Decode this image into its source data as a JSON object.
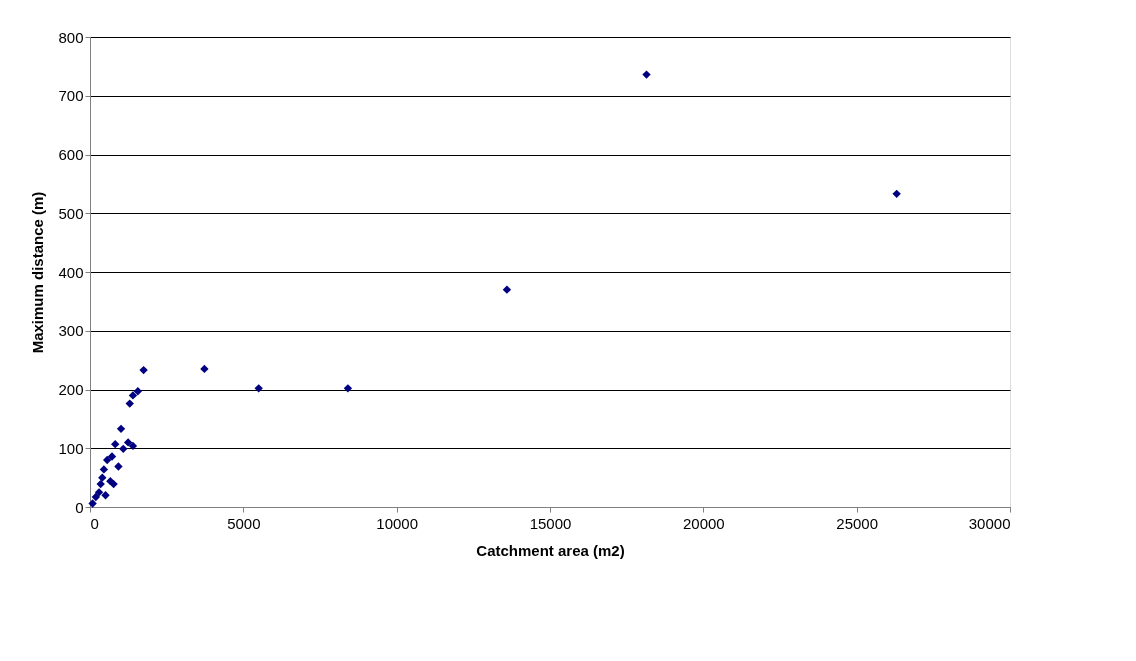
{
  "chart_data": {
    "type": "scatter",
    "xlabel": "Catchment area (m2)",
    "ylabel": "Maximum distance (m)",
    "xlim": [
      0,
      30000
    ],
    "xticks": [
      0,
      5000,
      10000,
      15000,
      20000,
      25000,
      30000
    ],
    "ylim": [
      0,
      800
    ],
    "yticks": [
      0,
      100,
      200,
      300,
      400,
      500,
      600,
      700,
      800
    ],
    "grid": "y",
    "legend": false,
    "marker": "diamond",
    "series": [
      {
        "color": "#000080",
        "x": [
          85,
          190,
          295,
          348,
          401,
          453,
          506,
          560,
          664,
          717,
          770,
          822,
          927,
          1012,
          1085,
          1243,
          1296,
          1400,
          1400,
          1560,
          1748,
          3731,
          5501,
          8410,
          13595,
          18147,
          26304
        ],
        "values": [
          6,
          17,
          25,
          39,
          50,
          64,
          20,
          80,
          44,
          86,
          39,
          107,
          69,
          133,
          99,
          110,
          176,
          190,
          104,
          197,
          233,
          235,
          202,
          202,
          370,
          736,
          533
        ]
      }
    ]
  }
}
